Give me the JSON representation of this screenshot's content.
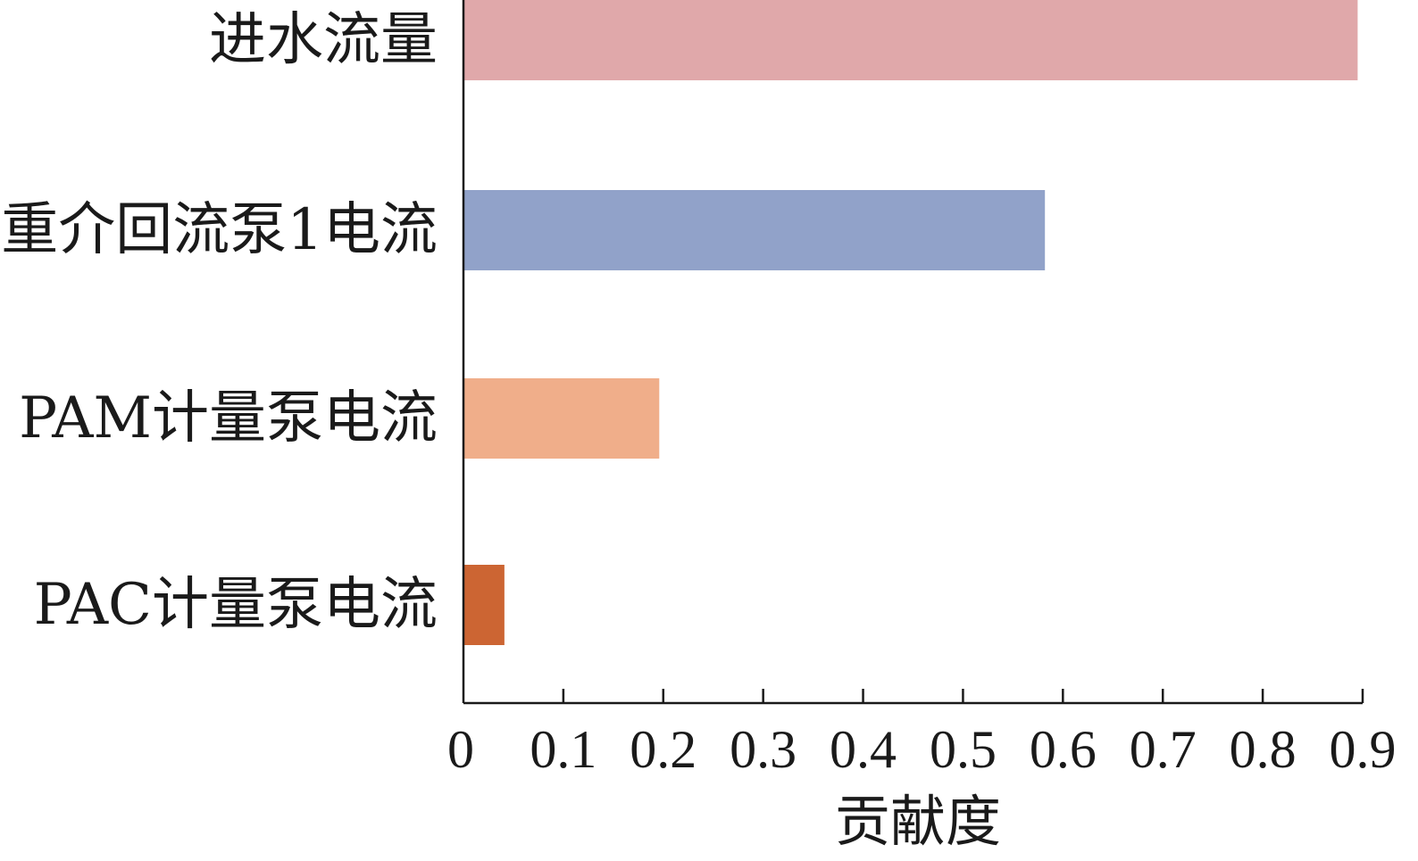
{
  "chart_data": {
    "type": "bar",
    "orientation": "horizontal",
    "categories": [
      "进水流量",
      "重介回流泵1电流",
      "PAM计量泵电流",
      "PAC计量泵电流"
    ],
    "values": [
      0.895,
      0.582,
      0.196,
      0.041
    ],
    "colors": [
      "#E0A8AA",
      "#91A2C9",
      "#F0AE8A",
      "#CC6533"
    ],
    "title": "",
    "xlabel": "贡献度",
    "ylabel": "",
    "xlim": [
      0,
      0.9
    ],
    "xticks": [
      "0",
      "0.1",
      "0.2",
      "0.3",
      "0.4",
      "0.5",
      "0.6",
      "0.7",
      "0.8",
      "0.9"
    ],
    "grid": false,
    "legend": "none"
  }
}
